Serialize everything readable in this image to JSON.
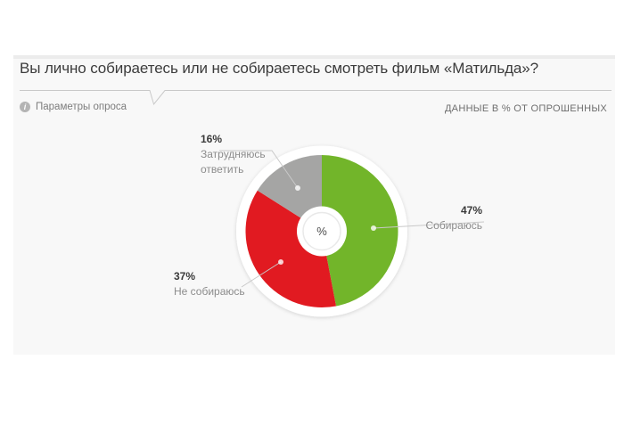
{
  "header": {
    "title": "Вы лично собираетесь или не собираетесь смотреть фильм «Матильда»?",
    "tab": {
      "label": "Параметры опроса",
      "icon_glyph": "i"
    },
    "note": "ДАННЫЕ В % ОТ ОПРОШЕННЫХ"
  },
  "chart_data": {
    "type": "pie",
    "title": "Вы лично собираетесь или не собираетесь смотреть фильм «Матильда»?",
    "donut": true,
    "center_label": "%",
    "start_angle_deg": 0,
    "direction": "clockwise",
    "total": 100,
    "slices": [
      {
        "label": "Собираюсь",
        "value": 47,
        "value_label": "47%",
        "color": "#72b52a"
      },
      {
        "label": "Не собираюсь",
        "value": 37,
        "value_label": "37%",
        "color": "#e11a21"
      },
      {
        "label": "Затрудняюсь ответить",
        "value": 16,
        "value_label": "16%",
        "color": "#a5a5a4"
      }
    ]
  },
  "colors": {
    "panel_bg": "#f8f8f8",
    "panel_top_border": "#ececec",
    "divider": "#c9c9c9",
    "leader_line": "#c9c9c9",
    "title_text": "#3c3c3c",
    "muted_text": "#8c8c8c",
    "note_text": "#6e6e6e"
  }
}
